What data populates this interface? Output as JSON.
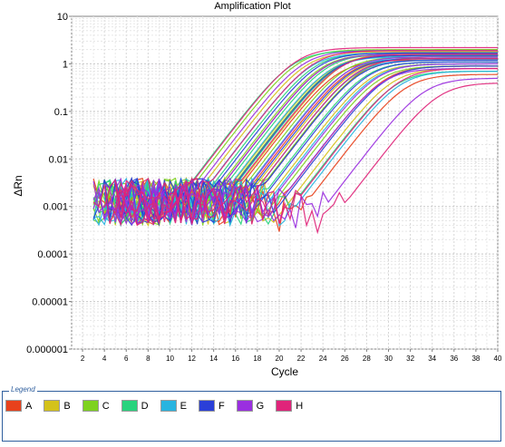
{
  "chart_data": {
    "type": "line",
    "title": "Amplification Plot",
    "xlabel": "Cycle",
    "ylabel": "ΔRn",
    "xlim": [
      1,
      40
    ],
    "ylim": [
      1e-06,
      10
    ],
    "yscale": "log",
    "grid": true,
    "x_ticks": [
      2,
      4,
      6,
      8,
      10,
      12,
      14,
      16,
      18,
      20,
      22,
      24,
      26,
      28,
      30,
      32,
      34,
      36,
      38,
      40
    ],
    "y_ticks": [
      {
        "value": 10,
        "label": "10"
      },
      {
        "value": 1,
        "label": "1"
      },
      {
        "value": 0.1,
        "label": "0.1"
      },
      {
        "value": 0.01,
        "label": "0.01"
      },
      {
        "value": 0.001,
        "label": "0.001"
      },
      {
        "value": 0.0001,
        "label": "0.0001"
      },
      {
        "value": 1e-05,
        "label": "0.00001"
      },
      {
        "value": 1e-06,
        "label": "0.000001"
      }
    ],
    "legend_position": "bottom",
    "legend_title": "Legend",
    "series": [
      {
        "name": "A",
        "color": "#e8411c",
        "curves": [
          {
            "ct": 24.0,
            "plateau": 1.6
          },
          {
            "ct": 25.3,
            "plateau": 1.2
          },
          {
            "ct": 27.6,
            "plateau": 1.4
          },
          {
            "ct": 29.6,
            "plateau": 0.9
          },
          {
            "ct": 31.5,
            "plateau": 0.6
          },
          {
            "ct": 26.4,
            "plateau": 1.3
          }
        ]
      },
      {
        "name": "B",
        "color": "#d4c21a",
        "curves": [
          {
            "ct": 22.4,
            "plateau": 1.8
          },
          {
            "ct": 24.7,
            "plateau": 1.5
          },
          {
            "ct": 26.8,
            "plateau": 1.3
          },
          {
            "ct": 28.4,
            "plateau": 1.0
          },
          {
            "ct": 30.3,
            "plateau": 0.8
          },
          {
            "ct": 25.6,
            "plateau": 1.7
          }
        ]
      },
      {
        "name": "C",
        "color": "#7ed21e",
        "curves": [
          {
            "ct": 21.7,
            "plateau": 2.0
          },
          {
            "ct": 23.8,
            "plateau": 1.6
          },
          {
            "ct": 25.9,
            "plateau": 1.4
          },
          {
            "ct": 27.3,
            "plateau": 1.2
          },
          {
            "ct": 29.1,
            "plateau": 0.9
          },
          {
            "ct": 24.9,
            "plateau": 1.5
          }
        ]
      },
      {
        "name": "D",
        "color": "#28d37d",
        "curves": [
          {
            "ct": 21.2,
            "plateau": 1.9
          },
          {
            "ct": 23.2,
            "plateau": 1.7
          },
          {
            "ct": 25.1,
            "plateau": 1.5
          },
          {
            "ct": 27.9,
            "plateau": 1.1
          },
          {
            "ct": 30.6,
            "plateau": 0.7
          },
          {
            "ct": 24.3,
            "plateau": 1.6
          }
        ]
      },
      {
        "name": "E",
        "color": "#28b4e0",
        "curves": [
          {
            "ct": 22.8,
            "plateau": 1.7
          },
          {
            "ct": 24.5,
            "plateau": 1.4
          },
          {
            "ct": 26.1,
            "plateau": 1.3
          },
          {
            "ct": 28.7,
            "plateau": 1.0
          },
          {
            "ct": 31.0,
            "plateau": 0.7
          },
          {
            "ct": 27.0,
            "plateau": 1.2
          }
        ]
      },
      {
        "name": "F",
        "color": "#2a3fd8",
        "curves": [
          {
            "ct": 23.5,
            "plateau": 1.7
          },
          {
            "ct": 25.0,
            "plateau": 1.5
          },
          {
            "ct": 26.6,
            "plateau": 1.3
          },
          {
            "ct": 28.1,
            "plateau": 1.1
          },
          {
            "ct": 29.8,
            "plateau": 0.9
          },
          {
            "ct": 27.4,
            "plateau": 1.2
          }
        ]
      },
      {
        "name": "G",
        "color": "#9a2fe0",
        "curves": [
          {
            "ct": 22.1,
            "plateau": 1.9
          },
          {
            "ct": 24.0,
            "plateau": 1.6
          },
          {
            "ct": 26.3,
            "plateau": 1.4
          },
          {
            "ct": 28.9,
            "plateau": 1.0
          },
          {
            "ct": 33.2,
            "plateau": 0.5
          },
          {
            "ct": 29.4,
            "plateau": 0.8
          }
        ]
      },
      {
        "name": "H",
        "color": "#e0247a",
        "curves": [
          {
            "ct": 21.5,
            "plateau": 2.2
          },
          {
            "ct": 23.0,
            "plateau": 1.9
          },
          {
            "ct": 25.4,
            "plateau": 1.6
          },
          {
            "ct": 27.1,
            "plateau": 1.3
          },
          {
            "ct": 30.9,
            "plateau": 0.8
          },
          {
            "ct": 34.5,
            "plateau": 0.4
          }
        ]
      }
    ]
  }
}
